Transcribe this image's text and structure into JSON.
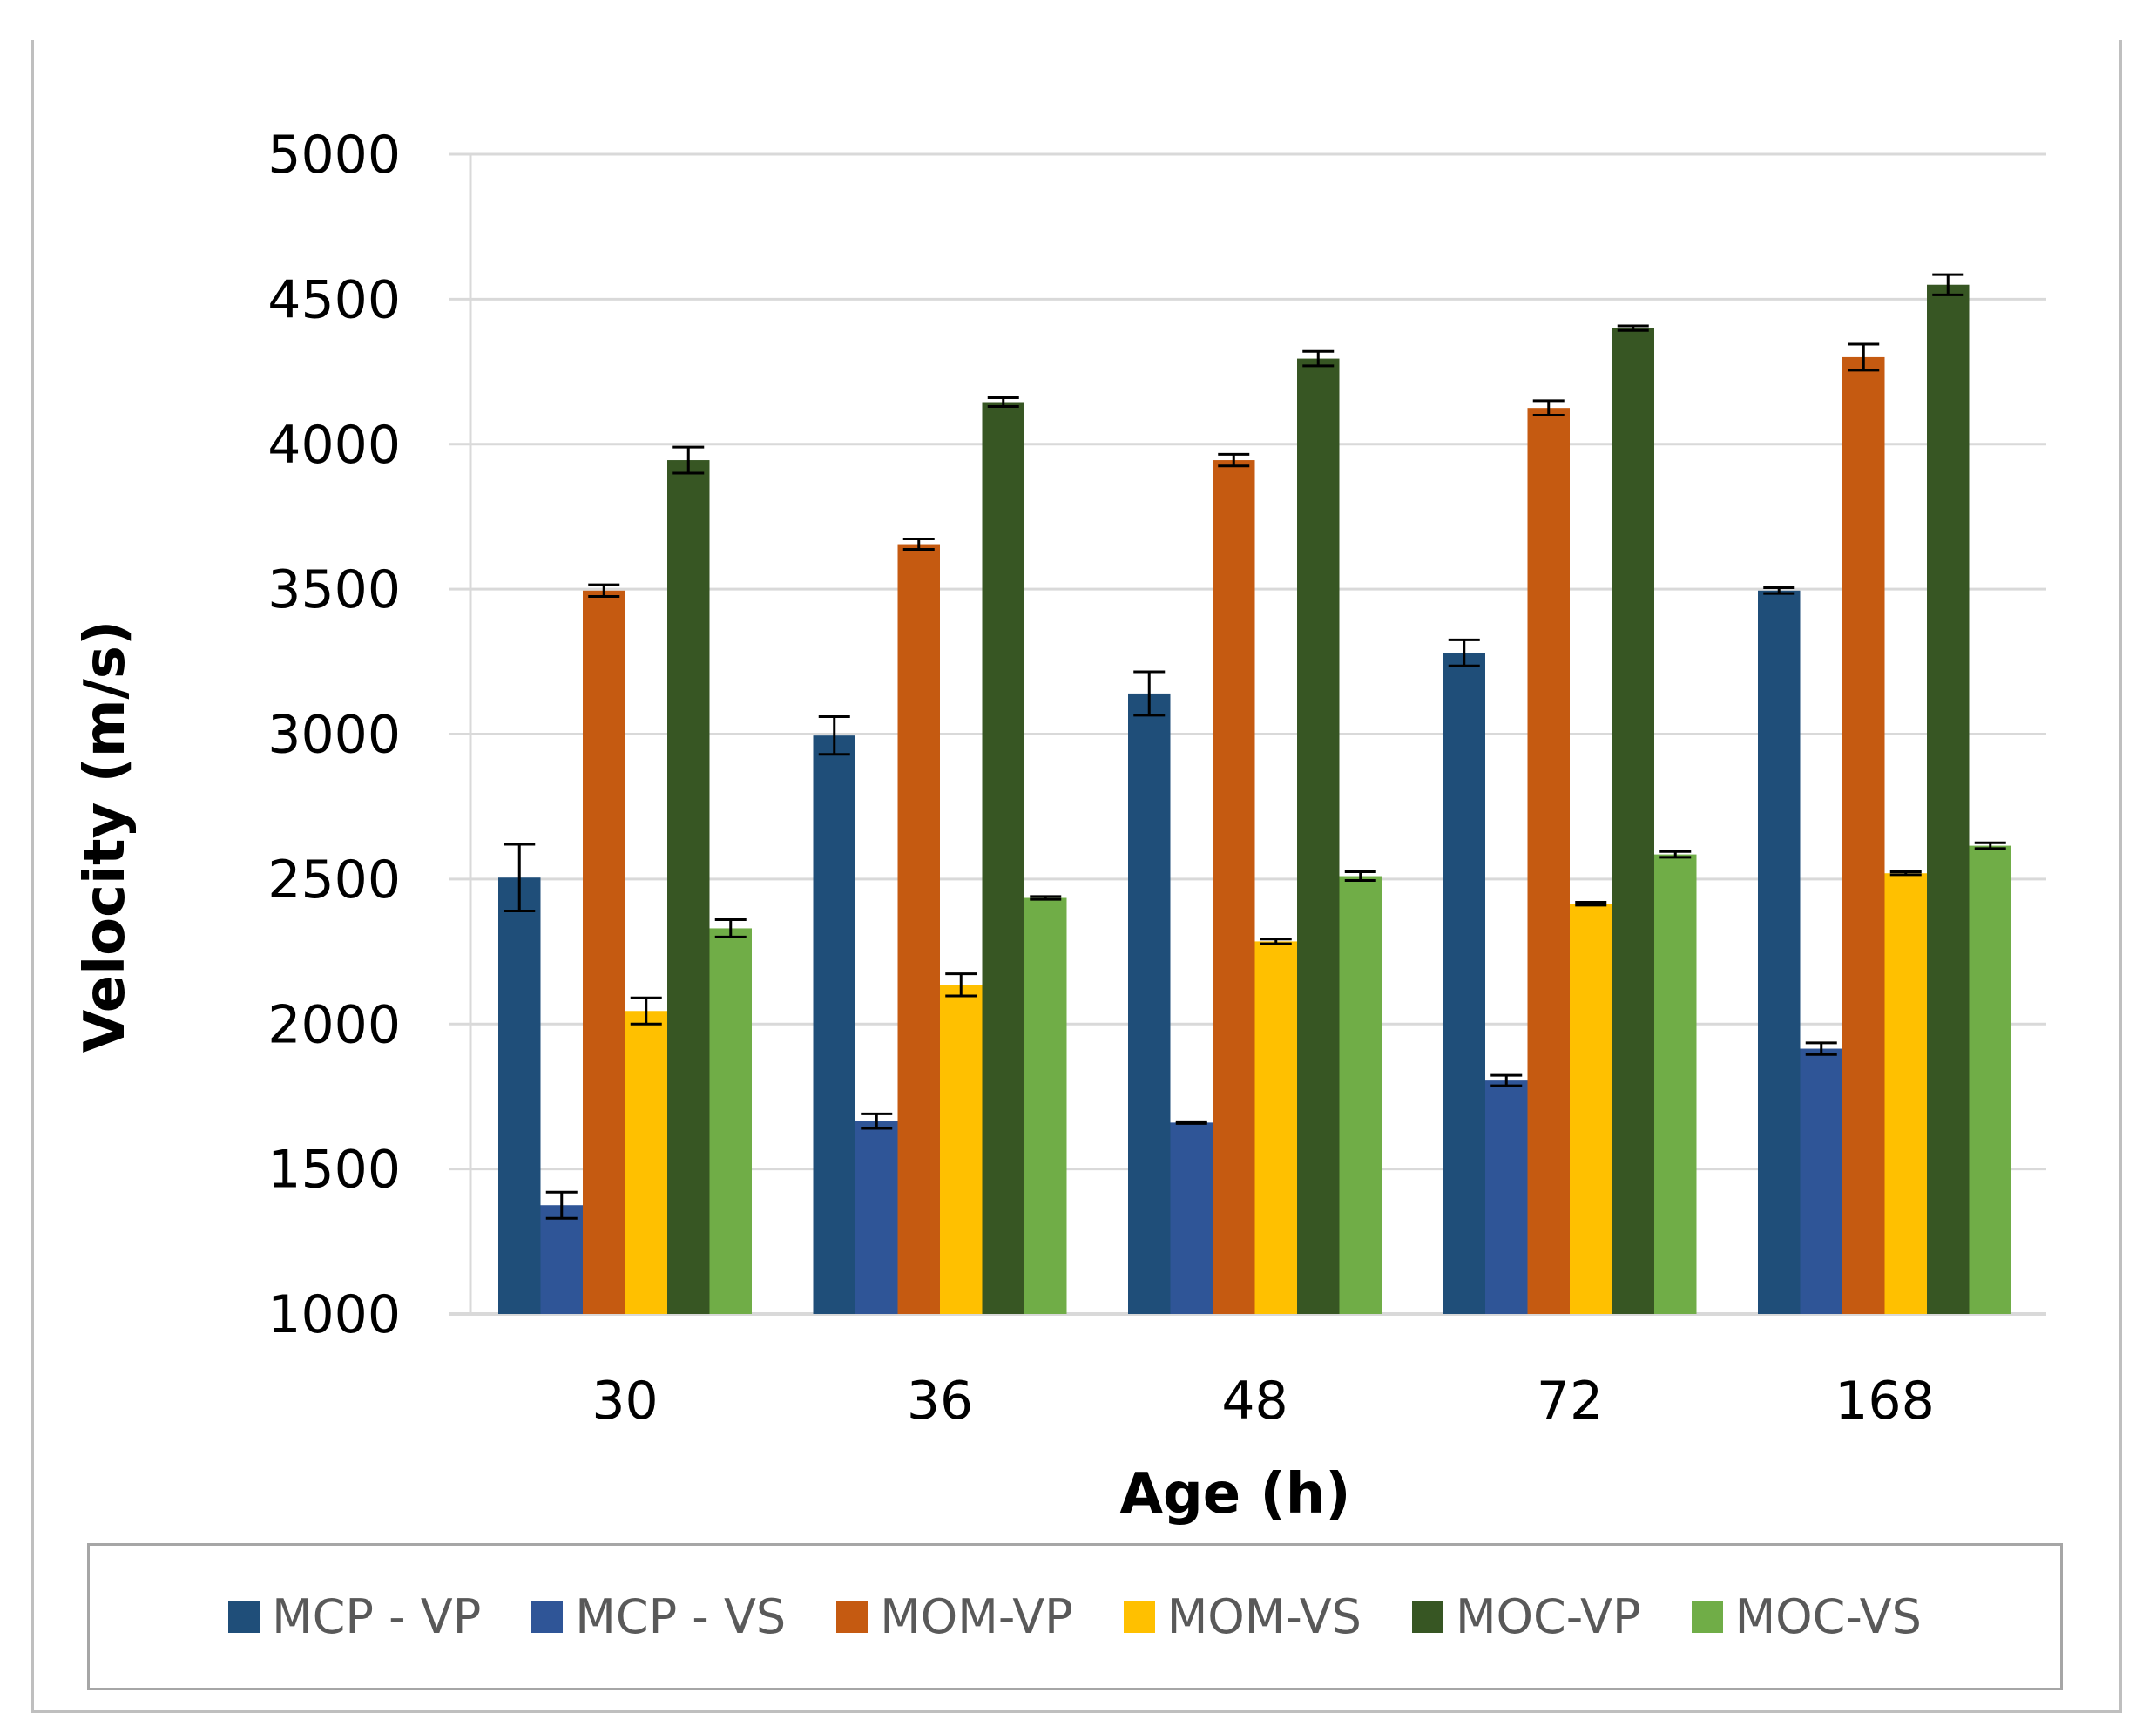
{
  "chart_data": {
    "type": "bar",
    "title": "",
    "xlabel": "Age (h)",
    "ylabel": "Velocity (m/s)",
    "ylim": [
      1000,
      5000
    ],
    "yticks": [
      1000,
      1500,
      2000,
      2500,
      3000,
      3500,
      4000,
      4500,
      5000
    ],
    "grid": true,
    "legend_position": "bottom",
    "categories": [
      "30",
      "36",
      "48",
      "72",
      "168"
    ],
    "series": [
      {
        "name": "MCP - VP",
        "color": "#1f4e79",
        "values": [
          2505,
          2995,
          3140,
          3280,
          3495
        ],
        "errors": [
          115,
          65,
          75,
          45,
          10
        ]
      },
      {
        "name": "MCP - VS",
        "color": "#2f5597",
        "values": [
          1375,
          1665,
          1660,
          1805,
          1915
        ],
        "errors": [
          45,
          25,
          3,
          18,
          20
        ]
      },
      {
        "name": "MOM-VP",
        "color": "#c55a11",
        "values": [
          3495,
          3655,
          3945,
          4125,
          4300
        ],
        "errors": [
          20,
          18,
          20,
          25,
          45
        ]
      },
      {
        "name": "MOM-VS",
        "color": "#ffc000",
        "values": [
          2045,
          2135,
          2285,
          2415,
          2520
        ],
        "errors": [
          45,
          38,
          8,
          5,
          5
        ]
      },
      {
        "name": "MOC-VP",
        "color": "#375623",
        "values": [
          3945,
          4145,
          4295,
          4400,
          4550
        ],
        "errors": [
          45,
          15,
          25,
          8,
          35
        ]
      },
      {
        "name": "MOC-VS",
        "color": "#70ad47",
        "values": [
          2330,
          2435,
          2510,
          2585,
          2615
        ],
        "errors": [
          30,
          5,
          15,
          10,
          10
        ]
      }
    ]
  }
}
